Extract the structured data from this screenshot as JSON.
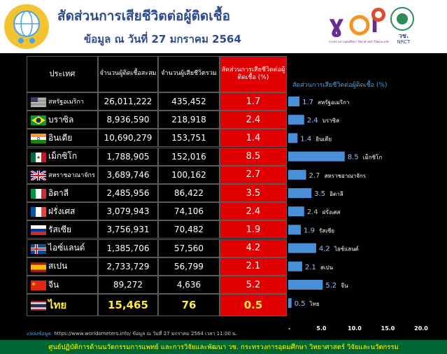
{
  "header": {
    "title": "สัดส่วนการเสียชีวิตต่อผู้ติดเชื้อ",
    "subtitle": "ข้อมูล ณ วันที่ 27 มกราคม 2564",
    "logo_mid_text": "กระทรวงการอุดมศึกษา วิทยาศาสตร์ วิจัยและนวัตกรรม",
    "logo_right_text": "วช.",
    "logo_right_sub": "NRCT"
  },
  "colors": {
    "title": "#2e4b8f",
    "panel": "#000000",
    "rate_column": "#e00000",
    "bar": "#4a90d9",
    "thai_highlight": "#ffeb3b",
    "footer_bg": "#006633",
    "footer_text": "#ffff00"
  },
  "table": {
    "headers": {
      "country": "ประเทศ",
      "cases": "จำนวนผู้ติดเชื้อสะสม",
      "deaths": "จำนวนผู้เสียชีวิตรวม",
      "rate": "สัดส่วนการเสียชีวิตต่อผู้ติดเชื้อ (%)"
    },
    "rows": [
      {
        "country": "สหรัฐอเมริกา",
        "cases": "26,011,222",
        "deaths": "435,452",
        "rate": "1.7",
        "flag": "us-flag-icon"
      },
      {
        "country": "บราซิล",
        "cases": "8,936,590",
        "deaths": "218,918",
        "rate": "2.4",
        "flag": "brazil-flag-icon"
      },
      {
        "country": "อินเดีย",
        "cases": "10,690,279",
        "deaths": "153,751",
        "rate": "1.4",
        "flag": "india-flag-icon"
      },
      {
        "country": "เม็กซิโก",
        "cases": "1,788,905",
        "deaths": "152,016",
        "rate": "8.5",
        "flag": "mexico-flag-icon"
      },
      {
        "country": "สหราชอาณาจักร",
        "cases": "3,689,746",
        "deaths": "100,162",
        "rate": "2.7",
        "flag": "uk-flag-icon"
      },
      {
        "country": "อิตาลี",
        "cases": "2,485,956",
        "deaths": "86,422",
        "rate": "3.5",
        "flag": "italy-flag-icon"
      },
      {
        "country": "ฝรั่งเศส",
        "cases": "3,079,943",
        "deaths": "74,106",
        "rate": "2.4",
        "flag": "france-flag-icon"
      },
      {
        "country": "รัสเซีย",
        "cases": "3,756,931",
        "deaths": "70,482",
        "rate": "1.9",
        "flag": "russia-flag-icon"
      },
      {
        "country": "ไอซ์แลนด์",
        "cases": "1,385,706",
        "deaths": "57,560",
        "rate": "4.2",
        "flag": "iceland-flag-icon"
      },
      {
        "country": "สเปน",
        "cases": "2,733,729",
        "deaths": "56,799",
        "rate": "2.1",
        "flag": "spain-flag-icon"
      },
      {
        "country": "จีน",
        "cases": "89,272",
        "deaths": "4,636",
        "rate": "5.2",
        "flag": "china-flag-icon"
      },
      {
        "country": "ไทย",
        "cases": "15,465",
        "deaths": "76",
        "rate": "0.5",
        "flag": "thailand-flag-icon"
      }
    ]
  },
  "chart_data": {
    "type": "bar",
    "orientation": "horizontal",
    "title": "สัดส่วนการเสียชีวิตต่อผู้ติดเชื้อ (%)",
    "categories": [
      "สหรัฐอเมริกา",
      "บราซิล",
      "อินเดีย",
      "เม็กซิโก",
      "สหราชอาณาจักร",
      "อิตาลี",
      "ฝรั่งเศส",
      "รัสเซีย",
      "ไอซ์แลนด์",
      "สเปน",
      "จีน",
      "ไทย"
    ],
    "values": [
      1.7,
      2.4,
      1.4,
      8.5,
      2.7,
      3.5,
      2.4,
      1.9,
      4.2,
      2.1,
      5.2,
      0.5
    ],
    "xlim": [
      0,
      20
    ],
    "xticks": [
      "-",
      "5.0",
      "10.0",
      "15.0",
      "20.0"
    ],
    "grid": false
  },
  "footer": {
    "source_label": "แหล่งข้อมูล:",
    "source_text": "https://www.worldometers.info/ ข้อมูล ณ วันที่ 27 มกราคม 2564 เวลา 11:00 น.",
    "credit": "ศูนย์ปฏิบัติการด้านนวัตกรรมการแพทย์ และการวิจัยและพัฒนา วช. กระทรวงการอุดมศึกษา วิทยาศาสตร์ วิจัยและนวัตกรรม"
  }
}
